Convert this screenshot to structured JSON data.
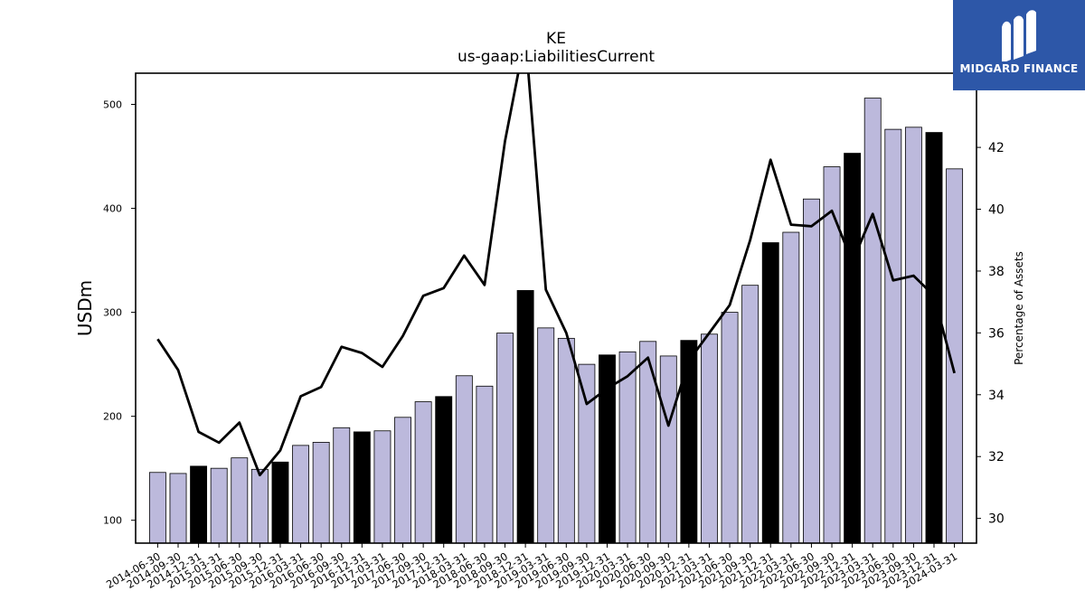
{
  "chart_data": {
    "type": "bar+line",
    "title": "KE",
    "subtitle": "us-gaap:LiabilitiesCurrent",
    "ylabel": "USDm",
    "y2label": "Percentage of Assets",
    "ylim": [
      78,
      530
    ],
    "y2lim": [
      29.2,
      44.4
    ],
    "yticks": [
      100,
      200,
      300,
      400,
      500
    ],
    "y2ticks": [
      30,
      32,
      34,
      36,
      38,
      40,
      42
    ],
    "categories": [
      "2014-06-30",
      "2014-09-30",
      "2014-12-31",
      "2015-03-31",
      "2015-06-30",
      "2015-09-30",
      "2015-12-31",
      "2016-03-31",
      "2016-06-30",
      "2016-09-30",
      "2016-12-31",
      "2017-03-31",
      "2017-06-30",
      "2017-09-30",
      "2017-12-31",
      "2018-03-31",
      "2018-06-30",
      "2018-09-30",
      "2018-12-31",
      "2019-03-31",
      "2019-06-30",
      "2019-09-30",
      "2019-12-31",
      "2020-03-31",
      "2020-06-30",
      "2020-09-30",
      "2020-12-31",
      "2021-03-31",
      "2021-06-30",
      "2021-09-30",
      "2021-12-31",
      "2022-03-31",
      "2022-06-30",
      "2022-09-30",
      "2022-12-31",
      "2023-03-31",
      "2023-06-30",
      "2023-09-30",
      "2023-12-31",
      "2024-03-31"
    ],
    "bars": {
      "values": [
        146,
        145,
        152,
        150,
        160,
        149,
        156,
        172,
        175,
        189,
        185,
        186,
        199,
        214,
        219,
        239,
        229,
        280,
        321,
        285,
        275,
        250,
        259,
        262,
        272,
        258,
        273,
        279,
        300,
        326,
        367,
        377,
        409,
        440,
        453,
        506,
        476,
        478,
        473,
        438
      ],
      "highlight": [
        false,
        false,
        true,
        false,
        false,
        false,
        true,
        false,
        false,
        false,
        true,
        false,
        false,
        false,
        true,
        false,
        false,
        false,
        true,
        false,
        false,
        false,
        true,
        false,
        false,
        false,
        true,
        false,
        false,
        false,
        true,
        false,
        false,
        false,
        true,
        false,
        false,
        false,
        true,
        false
      ]
    },
    "line": {
      "values": [
        35.8,
        34.8,
        32.8,
        32.45,
        33.1,
        31.4,
        32.2,
        33.95,
        34.25,
        35.55,
        35.35,
        34.9,
        35.9,
        37.2,
        37.45,
        38.5,
        37.55,
        42.2,
        45.6,
        37.4,
        36.0,
        33.7,
        34.2,
        34.6,
        35.2,
        33.0,
        35.1,
        36.0,
        36.9,
        39.0,
        41.6,
        39.5,
        39.45,
        39.95,
        38.3,
        39.85,
        37.7,
        37.85,
        37.2,
        34.7
      ]
    },
    "colors": {
      "bar": "#bcb9dc",
      "bar_highlight": "#000000",
      "bar_edge": "#000000",
      "line": "#000000"
    },
    "grid": false,
    "legend": "none"
  },
  "logo": {
    "text": "MIDGARD FINANCE",
    "icon": "midgard-logo-icon",
    "background": "#2d57a8"
  }
}
